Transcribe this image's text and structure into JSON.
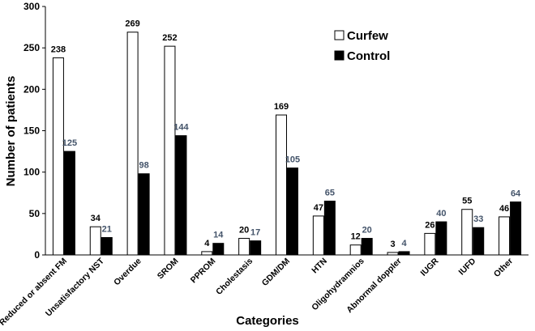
{
  "chart_data": {
    "type": "bar",
    "title": "",
    "xlabel": "Categories",
    "ylabel": "Number of patients",
    "ylim": [
      0,
      300
    ],
    "yticks": [
      0,
      50,
      100,
      150,
      200,
      250,
      300
    ],
    "grid": false,
    "legend_position": "top-right",
    "categories": [
      "Reduced or absent FM",
      "Unsatisfactory NST",
      "Overdue",
      "SROM",
      "PPROM",
      "Cholestasis",
      "GDM/DM",
      "HTN",
      "Oligohydramnios",
      "Abnormal doppler",
      "IUGR",
      "IUFD",
      "Other"
    ],
    "series": [
      {
        "name": "Curfew",
        "fill": "#ffffff",
        "stroke": "#000000",
        "label_color": "#000000",
        "values": [
          238,
          34,
          269,
          252,
          4,
          20,
          169,
          47,
          12,
          3,
          26,
          55,
          46
        ]
      },
      {
        "name": "Control",
        "fill": "#000000",
        "stroke": "#000000",
        "label_color": "#44546a",
        "values": [
          125,
          21,
          98,
          144,
          14,
          17,
          105,
          65,
          20,
          4,
          40,
          33,
          64
        ]
      }
    ]
  }
}
